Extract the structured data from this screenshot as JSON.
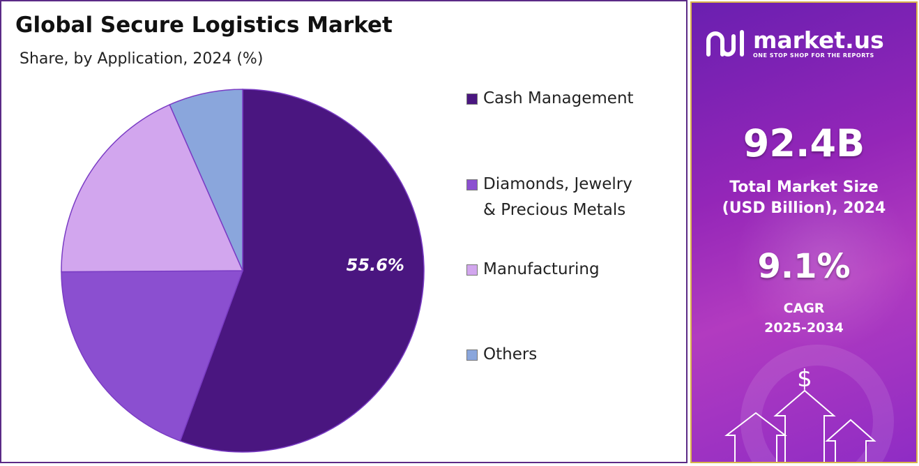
{
  "chart_data": {
    "type": "pie",
    "title": "Global Secure Logistics Market",
    "subtitle": "Share, by Application, 2024 (%)",
    "slices": [
      {
        "label": "Cash Management",
        "value": 55.6,
        "color": "#4a1680",
        "value_label": "55.6%"
      },
      {
        "label": "Diamonds, Jewelry & Precious Metals",
        "value": 19.3,
        "color": "#8b4fd0",
        "value_label": ""
      },
      {
        "label": "Manufacturing",
        "value": 18.5,
        "color": "#d2a6ee",
        "value_label": ""
      },
      {
        "label": "Others",
        "value": 6.6,
        "color": "#8aa6dc",
        "value_label": ""
      }
    ],
    "legend": [
      {
        "label": "Cash Management",
        "color": "#4a1680"
      },
      {
        "label": "Diamonds, Jewelry\n& Precious Metals",
        "color": "#8b4fd0"
      },
      {
        "label": "Manufacturing",
        "color": "#d2a6ee"
      },
      {
        "label": "Others",
        "color": "#8aa6dc"
      }
    ],
    "legend_position": "right"
  },
  "sidebar": {
    "brand": "market.us",
    "tagline": "ONE STOP SHOP FOR THE REPORTS",
    "market_size_value": "92.4B",
    "market_size_label": "Total Market Size\n(USD Billion), 2024",
    "cagr_value": "9.1%",
    "cagr_label": "CAGR\n2025-2034",
    "currency_symbol": "$",
    "logo_icon": "market-us-logo-icon",
    "decor_icon": "growth-arrows-icon"
  }
}
